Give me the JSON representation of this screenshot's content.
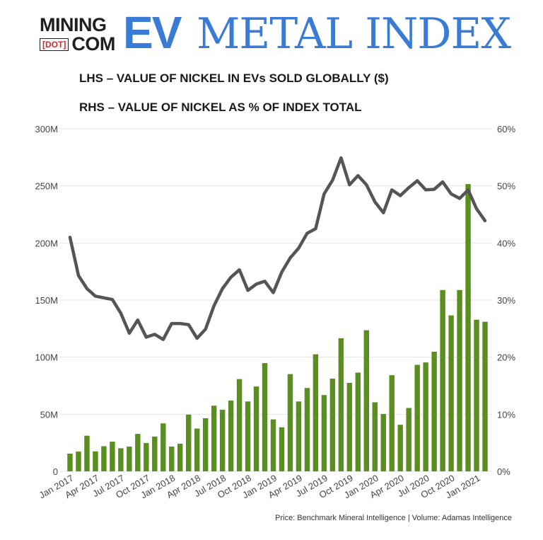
{
  "logo": {
    "line1": "MINING",
    "dot": "[DOT]",
    "line2": "COM",
    "ev": "EV",
    "rest": "METAL INDEX"
  },
  "subtitle_lhs": "LHS – VALUE OF NICKEL IN EVs SOLD GLOBALLY ($)",
  "subtitle_rhs": "RHS – VALUE OF NICKEL AS % OF INDEX TOTAL",
  "source": "Price: Benchmark Mineral Intelligence | Volume: Adamas Intelligence",
  "colors": {
    "bar": "#5a8f1e",
    "line": "#555555",
    "grid": "#e6e6e6",
    "logo_blue": "#3a7bd5",
    "logo_red": "#d62828"
  },
  "chart_data": {
    "type": "bar",
    "categories": [
      "Jan 2017",
      "Feb 2017",
      "Mar 2017",
      "Apr 2017",
      "May 2017",
      "Jun 2017",
      "Jul 2017",
      "Aug 2017",
      "Sep 2017",
      "Oct 2017",
      "Nov 2017",
      "Dec 2017",
      "Jan 2018",
      "Feb 2018",
      "Mar 2018",
      "Apr 2018",
      "May 2018",
      "Jun 2018",
      "Jul 2018",
      "Aug 2018",
      "Sep 2018",
      "Oct 2018",
      "Nov 2018",
      "Dec 2018",
      "Jan 2019",
      "Feb 2019",
      "Mar 2019",
      "Apr 2019",
      "May 2019",
      "Jun 2019",
      "Jul 2019",
      "Aug 2019",
      "Sep 2019",
      "Oct 2019",
      "Nov 2019",
      "Dec 2019",
      "Jan 2020",
      "Feb 2020",
      "Mar 2020",
      "Apr 2020",
      "May 2020",
      "Jun 2020",
      "Jul 2020",
      "Aug 2020",
      "Sep 2020",
      "Oct 2020",
      "Nov 2020",
      "Dec 2020",
      "Jan 2021",
      "Feb 2021"
    ],
    "x_tick_labels": [
      "Jan 2017",
      "Apr 2017",
      "Jul 2017",
      "Oct 2017",
      "Jan 2018",
      "Apr 2018",
      "Jul 2018",
      "Oct 2018",
      "Jan 2019",
      "Apr 2019",
      "Jul 2019",
      "Oct 2019",
      "Jan 2020",
      "Apr 2020",
      "Jul 2020",
      "Oct 2020",
      "Jan 2021"
    ],
    "series": [
      {
        "type": "bar",
        "axis": "left",
        "values": [
          15.5,
          17.3,
          31.2,
          17.5,
          22.0,
          26.0,
          20.2,
          21.7,
          32.8,
          24.8,
          30.5,
          42.0,
          21.7,
          24.2,
          49.7,
          37.5,
          46.5,
          57.5,
          54.0,
          62.0,
          80.8,
          61.2,
          74.3,
          94.8,
          45.5,
          38.6,
          85.2,
          61.2,
          73.0,
          102.5,
          66.8,
          81.2,
          116.6,
          77.5,
          86.5,
          123.6,
          60.5,
          50.3,
          84.2,
          40.8,
          55.5,
          93.3,
          95.4,
          104.8,
          158.8,
          136.6,
          158.8,
          251.6,
          132.8,
          131.0
        ]
      },
      {
        "type": "line",
        "axis": "right",
        "values": [
          41.0,
          34.3,
          32.0,
          30.7,
          30.4,
          30.1,
          27.7,
          24.2,
          26.5,
          23.5,
          24.0,
          23.1,
          25.9,
          25.9,
          25.7,
          23.3,
          24.9,
          29.0,
          32.0,
          34.0,
          35.3,
          31.7,
          32.8,
          33.3,
          31.3,
          34.9,
          37.4,
          39.1,
          41.7,
          42.5,
          48.6,
          51.0,
          54.9,
          50.2,
          51.8,
          50.2,
          47.2,
          45.3,
          49.3,
          48.3,
          49.7,
          50.9,
          49.3,
          49.4,
          50.7,
          48.6,
          47.8,
          49.3,
          46.0,
          43.9
        ]
      }
    ],
    "y_left": {
      "min": 0,
      "max": 300,
      "unit": "M",
      "ticks": [
        "0",
        "50M",
        "100M",
        "150M",
        "200M",
        "250M",
        "300M"
      ]
    },
    "y_right": {
      "min": 0,
      "max": 60,
      "unit": "%",
      "ticks": [
        "0%",
        "10%",
        "20%",
        "30%",
        "40%",
        "50%",
        "60%"
      ]
    },
    "grid": true
  }
}
